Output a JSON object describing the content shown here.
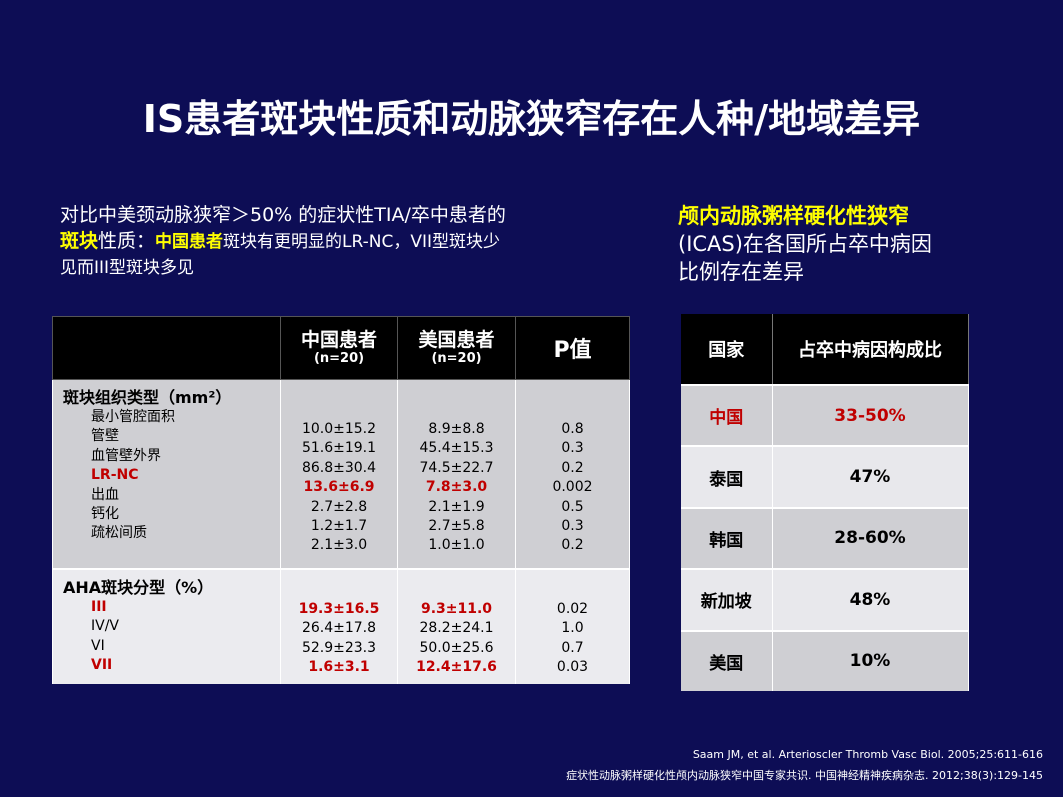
{
  "title": "IS患者斑块性质和动脉狭窄存在人种/地域差异",
  "intro": {
    "line1": "对比中美颈动脉狭窄＞50% 的症状性TIA/卒中患者的",
    "line2_highlight1": "斑块",
    "line2_text1": "性质：",
    "line2_highlight2": "中国患者",
    "line2_text2": "斑块有更明显的LR-NC，VII型斑块少",
    "line3": "见而III型斑块多见"
  },
  "right_intro": {
    "line1": "颅内动脉粥样硬化性狭窄",
    "line2": "(ICAS)在各国所占卒中病因",
    "line3": "比例存在差异"
  },
  "left_table": {
    "headers": {
      "china": "中国患者",
      "china_n": "(n=20)",
      "us": "美国患者",
      "us_n": "(n=20)",
      "p": "P值"
    },
    "group1": {
      "title": "斑块组织类型（mm²）",
      "items": [
        "最小管腔面积",
        "管壁",
        "血管壁外界",
        "LR-NC",
        "出血",
        "钙化",
        "疏松间质"
      ],
      "china": [
        "10.0±15.2",
        "51.6±19.1",
        "86.8±30.4",
        "13.6±6.9",
        "2.7±2.8",
        "1.2±1.7",
        "2.1±3.0"
      ],
      "us": [
        "8.9±8.8",
        "45.4±15.3",
        "74.5±22.7",
        "7.8±3.0",
        "2.1±1.9",
        "2.7±5.8",
        "1.0±1.0"
      ],
      "p": [
        "0.8",
        "0.3",
        "0.2",
        "0.002",
        "0.5",
        "0.3",
        "0.2"
      ]
    },
    "group2": {
      "title": "AHA斑块分型（%）",
      "items": [
        "III",
        "IV/V",
        "VI",
        "VII"
      ],
      "china": [
        "19.3±16.5",
        "26.4±17.8",
        "52.9±23.3",
        "1.6±3.1"
      ],
      "us": [
        "9.3±11.0",
        "28.2±24.1",
        "50.0±25.6",
        "12.4±17.6"
      ],
      "p": [
        "0.02",
        "1.0",
        "0.7",
        "0.03"
      ]
    },
    "highlight_color": "#c00000"
  },
  "right_table": {
    "headers": {
      "country": "国家",
      "ratio": "占卒中病因构成比"
    },
    "rows": [
      {
        "country": "中国",
        "ratio": "33-50%"
      },
      {
        "country": "泰国",
        "ratio": "47%"
      },
      {
        "country": "韩国",
        "ratio": "28-60%"
      },
      {
        "country": "新加坡",
        "ratio": "48%"
      },
      {
        "country": "美国",
        "ratio": "10%"
      }
    ]
  },
  "references": {
    "ref1": "Saam JM, et al. Arterioscler Thromb Vasc Biol. 2005;25:611-616",
    "ref2": "症状性动脉粥样硬化性颅内动脉狭窄中国专家共识. 中国神经精神疾病杂志. 2012;38(3):129-145"
  },
  "colors": {
    "background": "#0d0d55",
    "highlight_yellow": "#ffff00",
    "highlight_red": "#c00000"
  }
}
